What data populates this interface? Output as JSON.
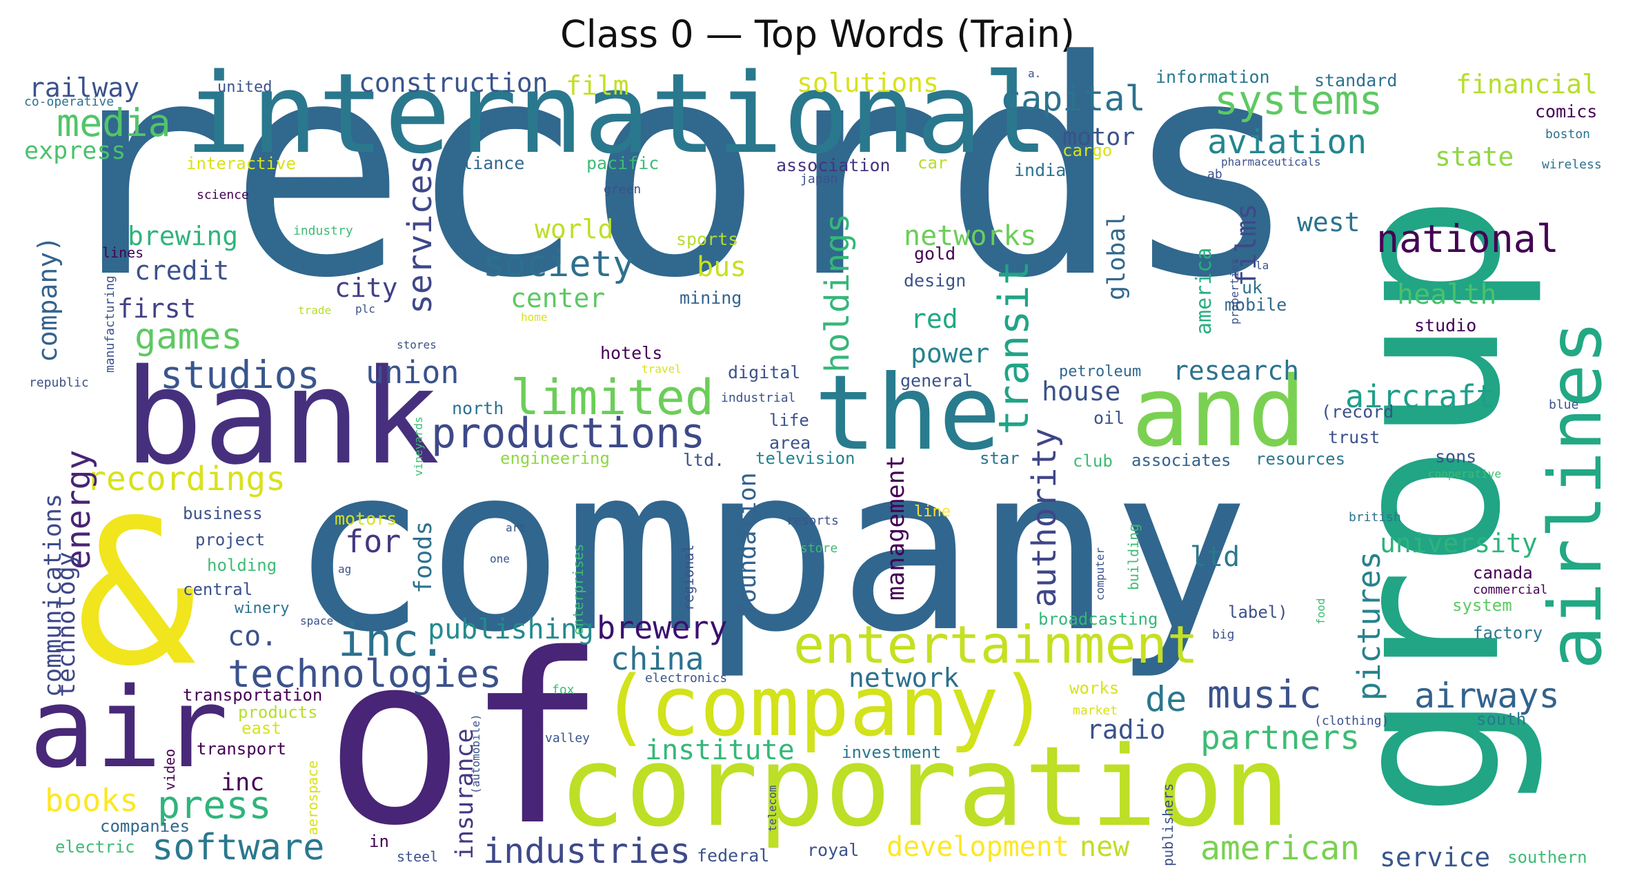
{
  "title": "Class 0 — Top Words (Train)",
  "words": [
    {
      "text": "records",
      "color": "#31688e"
    },
    {
      "text": "group",
      "color": "#21a585"
    },
    {
      "text": "company",
      "color": "#31668e"
    },
    {
      "text": "of",
      "color": "#482576"
    },
    {
      "text": "&",
      "color": "#f1e51d"
    },
    {
      "text": "international",
      "color": "#2a788e"
    },
    {
      "text": "bank",
      "color": "#46307e"
    },
    {
      "text": "the",
      "color": "#287c8e"
    },
    {
      "text": "and",
      "color": "#7ad151"
    },
    {
      "text": "airlines",
      "color": "#22a884"
    },
    {
      "text": "air",
      "color": "#482878"
    },
    {
      "text": "corporation",
      "color": "#bddf26"
    },
    {
      "text": "(company)",
      "color": "#d2e21b"
    },
    {
      "text": "entertainment",
      "color": "#c5e021"
    },
    {
      "text": "limited",
      "color": "#6ccd5a"
    },
    {
      "text": "productions",
      "color": "#3e4989"
    },
    {
      "text": "inc.",
      "color": "#2c718e"
    },
    {
      "text": "transit",
      "color": "#20a486"
    },
    {
      "text": "technologies",
      "color": "#3b528b"
    },
    {
      "text": "studios",
      "color": "#39568c"
    },
    {
      "text": "media",
      "color": "#52c569"
    },
    {
      "text": "systems",
      "color": "#5ec962"
    },
    {
      "text": "capital",
      "color": "#2c728e"
    },
    {
      "text": "aviation",
      "color": "#24868e"
    },
    {
      "text": "national",
      "color": "#440154"
    },
    {
      "text": "society",
      "color": "#2d708e"
    },
    {
      "text": "games",
      "color": "#5ec962"
    },
    {
      "text": "holdings",
      "color": "#35b779"
    },
    {
      "text": "services",
      "color": "#3f4788"
    },
    {
      "text": "authority",
      "color": "#404588"
    },
    {
      "text": "music",
      "color": "#3b528b"
    },
    {
      "text": "airways",
      "color": "#33638d"
    },
    {
      "text": "press",
      "color": "#2fb47c"
    },
    {
      "text": "software",
      "color": "#2a788e"
    },
    {
      "text": "industries",
      "color": "#3e4989"
    },
    {
      "text": "american",
      "color": "#7ad151"
    },
    {
      "text": "pictures",
      "color": "#26828e"
    },
    {
      "text": "recordings",
      "color": "#d8e219"
    },
    {
      "text": "energy",
      "color": "#482475"
    },
    {
      "text": "partners",
      "color": "#3dbc74"
    },
    {
      "text": "aircraft",
      "color": "#1f9e89"
    },
    {
      "text": "development",
      "color": "#fde725"
    },
    {
      "text": "books",
      "color": "#fde725"
    },
    {
      "text": "institute",
      "color": "#35b779"
    },
    {
      "text": "publishing",
      "color": "#238a8d"
    },
    {
      "text": "brewery",
      "color": "#3b0f70"
    },
    {
      "text": "china",
      "color": "#2c728e"
    },
    {
      "text": "union",
      "color": "#3b528b"
    },
    {
      "text": "construction",
      "color": "#3a548c"
    },
    {
      "text": "solutions",
      "color": "#d8e219"
    },
    {
      "text": "financial",
      "color": "#b5de2b"
    },
    {
      "text": "railway",
      "color": "#3b528b"
    },
    {
      "text": "company)",
      "color": "#33638d"
    },
    {
      "text": "communications",
      "color": "#3e4a89"
    },
    {
      "text": "technology",
      "color": "#3f4788"
    },
    {
      "text": "film",
      "color": "#c2df23"
    },
    {
      "text": "films",
      "color": "#3e4989"
    },
    {
      "text": "brewing",
      "color": "#2fb47c"
    },
    {
      "text": "credit",
      "color": "#3b528b"
    },
    {
      "text": "first",
      "color": "#424186"
    },
    {
      "text": "world",
      "color": "#bddf26"
    },
    {
      "text": "center",
      "color": "#5cc863"
    },
    {
      "text": "bus",
      "color": "#c8e020"
    },
    {
      "text": "city",
      "color": "#424086"
    },
    {
      "text": "for",
      "color": "#453781"
    },
    {
      "text": "networks",
      "color": "#6ccd5a"
    },
    {
      "text": "state",
      "color": "#8fd744"
    },
    {
      "text": "west",
      "color": "#2c728e"
    },
    {
      "text": "health",
      "color": "#4ac16d"
    },
    {
      "text": "research",
      "color": "#2c728e"
    },
    {
      "text": "university",
      "color": "#2eb37c"
    },
    {
      "text": "house",
      "color": "#3b528b"
    },
    {
      "text": "de",
      "color": "#2a788e"
    },
    {
      "text": "radio",
      "color": "#3b528b"
    },
    {
      "text": "foundation",
      "color": "#33638d"
    },
    {
      "text": "management",
      "color": "#440154"
    },
    {
      "text": "network",
      "color": "#2d708e"
    },
    {
      "text": "power",
      "color": "#25838e"
    },
    {
      "text": "red",
      "color": "#22a884"
    },
    {
      "text": "co.",
      "color": "#3b528b"
    },
    {
      "text": "insurance",
      "color": "#443983"
    },
    {
      "text": "foods",
      "color": "#2c728e"
    },
    {
      "text": "new",
      "color": "#bddf26"
    },
    {
      "text": "service",
      "color": "#39568c"
    },
    {
      "text": "ltd",
      "color": "#2a788e"
    },
    {
      "text": "global",
      "color": "#31688e"
    },
    {
      "text": "america",
      "color": "#29af7f"
    },
    {
      "text": "motor",
      "color": "#3b528b"
    },
    {
      "text": "express",
      "color": "#4ac16d"
    },
    {
      "text": "inc",
      "color": "#440154"
    },
    {
      "text": "information",
      "color": "#2a788e"
    },
    {
      "text": "standard",
      "color": "#2c728e"
    },
    {
      "text": "interactive",
      "color": "#d8e219"
    },
    {
      "text": "alliance",
      "color": "#31688e"
    },
    {
      "text": "pacific",
      "color": "#3dbc74"
    },
    {
      "text": "association",
      "color": "#46337e"
    },
    {
      "text": "car",
      "color": "#b5de2b"
    },
    {
      "text": "cargo",
      "color": "#d8e219"
    },
    {
      "text": "india",
      "color": "#2c728e"
    },
    {
      "text": "comics",
      "color": "#440154"
    },
    {
      "text": "sports",
      "color": "#b5de2b"
    },
    {
      "text": "mining",
      "color": "#33638d"
    },
    {
      "text": "gold",
      "color": "#440154"
    },
    {
      "text": "design",
      "color": "#3b528b"
    },
    {
      "text": "mobile",
      "color": "#31688e"
    },
    {
      "text": "uk",
      "color": "#2c728e"
    },
    {
      "text": "studio",
      "color": "#440154"
    },
    {
      "text": "hotels",
      "color": "#440154"
    },
    {
      "text": "digital",
      "color": "#3b528b"
    },
    {
      "text": "general",
      "color": "#3b528b"
    },
    {
      "text": "petroleum",
      "color": "#31688e"
    },
    {
      "text": "oil",
      "color": "#3b528b"
    },
    {
      "text": "trust",
      "color": "#3b528b"
    },
    {
      "text": "(record",
      "color": "#3b528b"
    },
    {
      "text": "sons",
      "color": "#3b528b"
    },
    {
      "text": "resources",
      "color": "#2a788e"
    },
    {
      "text": "associates",
      "color": "#33638d"
    },
    {
      "text": "club",
      "color": "#3dbc74"
    },
    {
      "text": "star",
      "color": "#2c728e"
    },
    {
      "text": "television",
      "color": "#25838e"
    },
    {
      "text": "area",
      "color": "#3b528b"
    },
    {
      "text": "life",
      "color": "#3b528b"
    },
    {
      "text": "ltd.",
      "color": "#3b528b"
    },
    {
      "text": "north",
      "color": "#2c728e"
    },
    {
      "text": "engineering",
      "color": "#8fd744"
    },
    {
      "text": "business",
      "color": "#3b528b"
    },
    {
      "text": "project",
      "color": "#3b528b"
    },
    {
      "text": "holding",
      "color": "#3dbc74"
    },
    {
      "text": "central",
      "color": "#3b528b"
    },
    {
      "text": "winery",
      "color": "#2c728e"
    },
    {
      "text": "transportation",
      "color": "#440154"
    },
    {
      "text": "products",
      "color": "#b5de2b"
    },
    {
      "text": "east",
      "color": "#d8e219"
    },
    {
      "text": "transport",
      "color": "#440154"
    },
    {
      "text": "motors",
      "color": "#d8e219"
    },
    {
      "text": "companies",
      "color": "#31688e"
    },
    {
      "text": "electric",
      "color": "#3dbc74"
    },
    {
      "text": "in",
      "color": "#440154"
    },
    {
      "text": "steel",
      "color": "#3b528b"
    },
    {
      "text": "royal",
      "color": "#3b528b"
    },
    {
      "text": "federal",
      "color": "#3b528b"
    },
    {
      "text": "investment",
      "color": "#2a788e"
    },
    {
      "text": "works",
      "color": "#d8e219"
    },
    {
      "text": "market",
      "color": "#d8e219"
    },
    {
      "text": "(clothing)",
      "color": "#3b528b"
    },
    {
      "text": "south",
      "color": "#2a788e"
    },
    {
      "text": "southern",
      "color": "#3dbc74"
    },
    {
      "text": "system",
      "color": "#5ec962"
    },
    {
      "text": "factory",
      "color": "#2a788e"
    },
    {
      "text": "canada",
      "color": "#440154"
    },
    {
      "text": "commercial",
      "color": "#440154"
    },
    {
      "text": "label)",
      "color": "#3b528b"
    },
    {
      "text": "broadcasting",
      "color": "#35b779"
    },
    {
      "text": "big",
      "color": "#3b528b"
    },
    {
      "text": "cooperative",
      "color": "#3dbc74"
    },
    {
      "text": "british",
      "color": "#2c728e"
    },
    {
      "text": "blue",
      "color": "#3b528b"
    },
    {
      "text": "united",
      "color": "#3b528b"
    },
    {
      "text": "co-operative",
      "color": "#2c728e"
    },
    {
      "text": "science",
      "color": "#440154"
    },
    {
      "text": "industry",
      "color": "#3dbc74"
    },
    {
      "text": "lines",
      "color": "#440154"
    },
    {
      "text": "trade",
      "color": "#b5de2b"
    },
    {
      "text": "plc",
      "color": "#3b528b"
    },
    {
      "text": "manufacturing",
      "color": "#3b528b"
    },
    {
      "text": "republic",
      "color": "#3b528b"
    },
    {
      "text": "home",
      "color": "#d8e219"
    },
    {
      "text": "stores",
      "color": "#3b528b"
    },
    {
      "text": "travel",
      "color": "#d8e219"
    },
    {
      "text": "industrial",
      "color": "#3b528b"
    },
    {
      "text": "green",
      "color": "#3b528b"
    },
    {
      "text": "japan",
      "color": "#3b528b"
    },
    {
      "text": "properties",
      "color": "#3b528b"
    },
    {
      "text": "la",
      "color": "#3b528b"
    },
    {
      "text": "ab",
      "color": "#3b528b"
    },
    {
      "text": "a.",
      "color": "#3b528b"
    },
    {
      "text": "pharmaceuticals",
      "color": "#3b528b"
    },
    {
      "text": "boston",
      "color": "#2c728e"
    },
    {
      "text": "wireless",
      "color": "#2c728e"
    },
    {
      "text": "vineyards",
      "color": "#3dbc74"
    },
    {
      "text": "enterprises",
      "color": "#3dbc74"
    },
    {
      "text": "regional",
      "color": "#3b528b"
    },
    {
      "text": "art",
      "color": "#3b528b"
    },
    {
      "text": "one",
      "color": "#3b528b"
    },
    {
      "text": "resorts",
      "color": "#3b528b"
    },
    {
      "text": "store",
      "color": "#3dbc74"
    },
    {
      "text": "line",
      "color": "#fde725"
    },
    {
      "text": "building",
      "color": "#3dbc74"
    },
    {
      "text": "computer",
      "color": "#3b528b"
    },
    {
      "text": "food",
      "color": "#3dbc74"
    },
    {
      "text": "ag",
      "color": "#3b528b"
    },
    {
      "text": "space",
      "color": "#3b528b"
    },
    {
      "text": "electronics",
      "color": "#3b528b"
    },
    {
      "text": "fox",
      "color": "#3dbc74"
    },
    {
      "text": "(automobile)",
      "color": "#3b528b"
    },
    {
      "text": "valley",
      "color": "#3b528b"
    },
    {
      "text": "video",
      "color": "#440154"
    },
    {
      "text": "aerospace",
      "color": "#d8e219"
    },
    {
      "text": "telecom",
      "color": "#3b528b"
    },
    {
      "text": "publishers",
      "color": "#3b528b"
    }
  ]
}
